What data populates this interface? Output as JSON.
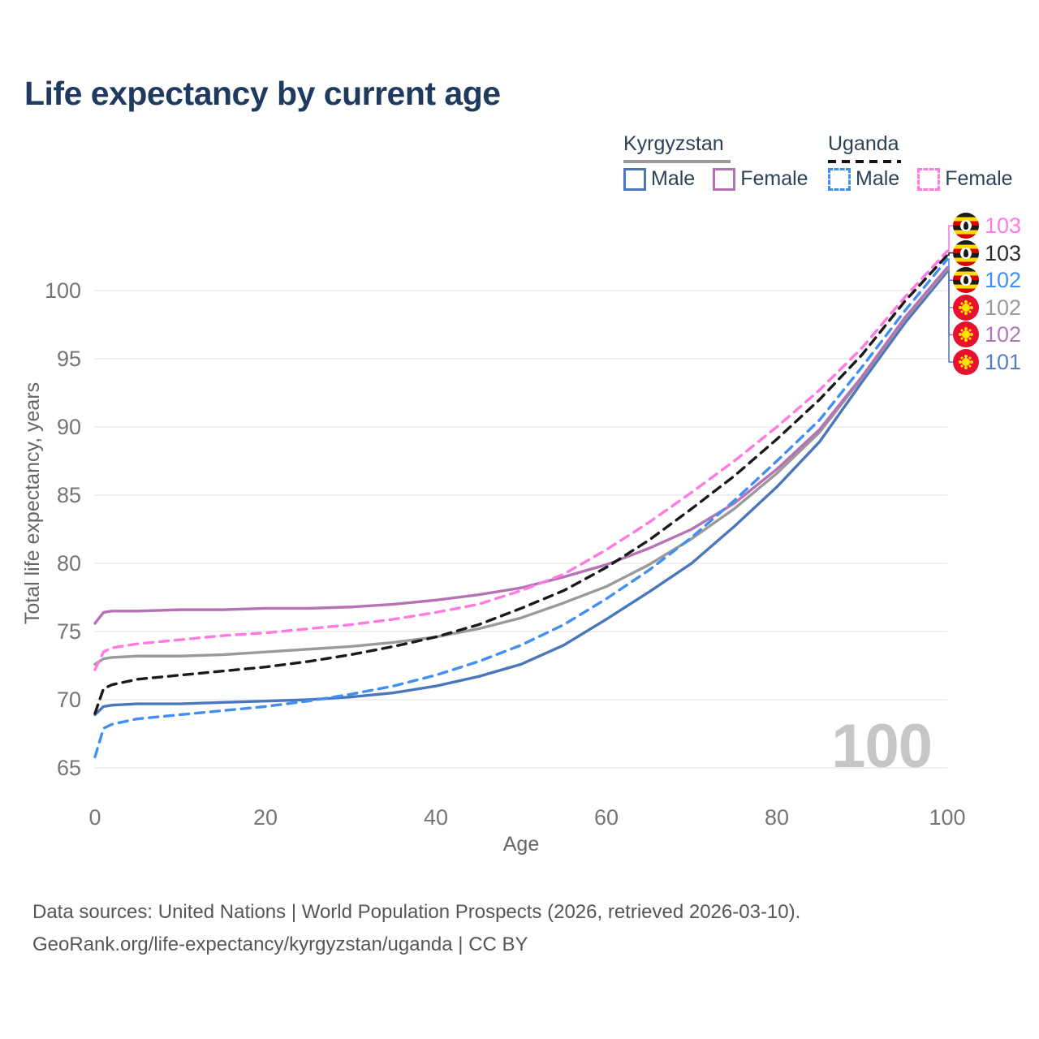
{
  "title": "Life expectancy by current age",
  "legend": {
    "groups": [
      {
        "label": "Kyrgyzstan",
        "style": "solid",
        "underline_color": "#9a9a9a",
        "items": [
          {
            "label": "Male",
            "series": "kg-male"
          },
          {
            "label": "Female",
            "series": "kg-female"
          }
        ]
      },
      {
        "label": "Uganda",
        "style": "dashed",
        "underline_color": "#141414",
        "items": [
          {
            "label": "Male",
            "series": "ug-male"
          },
          {
            "label": "Female",
            "series": "ug-female"
          }
        ]
      }
    ]
  },
  "chart_data": {
    "type": "line",
    "title": "Life expectancy by current age",
    "xlabel": "Age",
    "ylabel": "Total life expectancy, years",
    "xlim": [
      0,
      100
    ],
    "ylim": [
      65,
      103
    ],
    "xticks": [
      0,
      20,
      40,
      60,
      80,
      100
    ],
    "yticks": [
      65,
      70,
      75,
      80,
      85,
      90,
      95,
      100
    ],
    "grid": "horizontal",
    "x": [
      0,
      1,
      2,
      5,
      10,
      15,
      20,
      25,
      30,
      35,
      40,
      45,
      50,
      55,
      60,
      65,
      70,
      75,
      80,
      85,
      90,
      95,
      100
    ],
    "series": [
      {
        "id": "kg-male",
        "name": "Kyrgyzstan Male",
        "country": "Kyrgyzstan",
        "sex": "Male",
        "style": "solid",
        "color": "#4a77bc",
        "values": [
          68.9,
          69.5,
          69.6,
          69.7,
          69.7,
          69.8,
          69.9,
          70.0,
          70.2,
          70.5,
          71.0,
          71.7,
          72.6,
          74.0,
          75.9,
          77.9,
          80.0,
          82.7,
          85.6,
          88.9,
          93.3,
          97.6,
          101.4
        ]
      },
      {
        "id": "kg-both",
        "name": "Kyrgyzstan (both sexes)",
        "country": "Kyrgyzstan",
        "sex": "Both",
        "style": "solid",
        "color": "#9a9a9a",
        "values": [
          72.6,
          73.0,
          73.1,
          73.2,
          73.2,
          73.3,
          73.5,
          73.7,
          73.9,
          74.2,
          74.6,
          75.2,
          76.0,
          77.1,
          78.3,
          79.9,
          81.8,
          84.0,
          86.6,
          89.6,
          93.6,
          97.9,
          101.6
        ]
      },
      {
        "id": "kg-female",
        "name": "Kyrgyzstan Female",
        "country": "Kyrgyzstan",
        "sex": "Female",
        "style": "solid",
        "color": "#b573b5",
        "values": [
          75.6,
          76.4,
          76.5,
          76.5,
          76.6,
          76.6,
          76.7,
          76.7,
          76.8,
          77.0,
          77.3,
          77.7,
          78.2,
          79.0,
          79.9,
          81.1,
          82.5,
          84.4,
          86.9,
          89.8,
          93.7,
          98.0,
          101.7
        ]
      },
      {
        "id": "ug-male",
        "name": "Uganda Male",
        "country": "Uganda",
        "sex": "Male",
        "style": "dashed",
        "color": "#418ff2",
        "values": [
          65.8,
          67.9,
          68.2,
          68.6,
          68.9,
          69.2,
          69.5,
          69.9,
          70.4,
          71.0,
          71.8,
          72.8,
          74.0,
          75.5,
          77.4,
          79.5,
          81.9,
          84.6,
          87.5,
          90.5,
          94.4,
          98.5,
          102.3
        ]
      },
      {
        "id": "ug-both",
        "name": "Uganda (both sexes)",
        "country": "Uganda",
        "sex": "Both",
        "style": "dashed",
        "color": "#1a1a1a",
        "values": [
          69.0,
          70.8,
          71.1,
          71.5,
          71.8,
          72.1,
          72.4,
          72.8,
          73.3,
          73.9,
          74.6,
          75.5,
          76.7,
          78.0,
          79.7,
          81.7,
          84.0,
          86.4,
          89.1,
          92.0,
          95.3,
          99.2,
          102.6
        ]
      },
      {
        "id": "ug-female",
        "name": "Uganda Female",
        "country": "Uganda",
        "sex": "Female",
        "style": "dashed",
        "color": "#ff7ae1",
        "values": [
          72.2,
          73.5,
          73.8,
          74.1,
          74.4,
          74.7,
          74.9,
          75.2,
          75.5,
          75.9,
          76.4,
          77.0,
          78.0,
          79.2,
          81.0,
          83.0,
          85.2,
          87.5,
          90.0,
          92.7,
          95.8,
          99.5,
          102.9
        ]
      }
    ]
  },
  "end_labels": [
    {
      "value": "103",
      "color": "#ff7ae1",
      "flag": "uganda",
      "series": "ug-female"
    },
    {
      "value": "103",
      "color": "#2b2b2b",
      "flag": "uganda",
      "series": "ug-both"
    },
    {
      "value": "102",
      "color": "#418ff2",
      "flag": "uganda",
      "series": "ug-male"
    },
    {
      "value": "102",
      "color": "#9a9a9a",
      "flag": "kyrgyzstan",
      "series": "kg-both"
    },
    {
      "value": "102",
      "color": "#b078b8",
      "flag": "kyrgyzstan",
      "series": "kg-female"
    },
    {
      "value": "101",
      "color": "#5580c0",
      "flag": "kyrgyzstan",
      "series": "kg-male"
    }
  ],
  "watermark": "100",
  "footer": {
    "line1": "Data sources: United Nations | World Population Prospects (2026, retrieved 2026-03-10).",
    "line2": "GeoRank.org/life-expectancy/kyrgyzstan/uganda | CC BY"
  }
}
